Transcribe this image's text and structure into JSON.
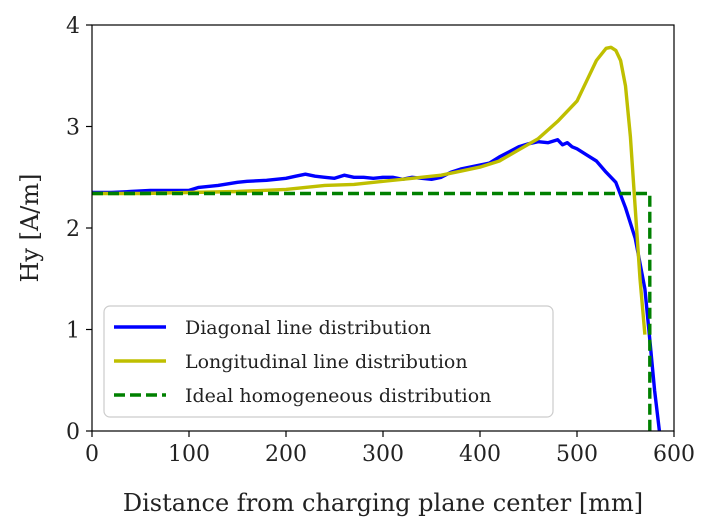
{
  "chart_data": {
    "type": "line",
    "title": "",
    "xlabel": "Distance from charging plane center [mm]",
    "ylabel": "Hy [A/m]",
    "xlim": [
      0,
      600
    ],
    "ylim": [
      0,
      4
    ],
    "xticks": [
      0,
      100,
      200,
      300,
      400,
      500,
      600
    ],
    "yticks": [
      0,
      1,
      2,
      3,
      4
    ],
    "grid": false,
    "legend_position": "lower-left",
    "series": [
      {
        "name": "Diagonal line distribution",
        "color": "#0000ff",
        "style": "solid",
        "x": [
          0,
          20,
          40,
          60,
          80,
          100,
          110,
          130,
          150,
          160,
          180,
          200,
          210,
          220,
          230,
          240,
          250,
          260,
          270,
          280,
          290,
          300,
          310,
          320,
          330,
          340,
          350,
          360,
          370,
          380,
          400,
          410,
          420,
          430,
          440,
          450,
          460,
          470,
          480,
          485,
          490,
          495,
          500,
          510,
          520,
          530,
          540,
          550,
          560,
          570,
          575,
          580,
          585
        ],
        "y": [
          2.35,
          2.35,
          2.36,
          2.37,
          2.37,
          2.37,
          2.4,
          2.42,
          2.45,
          2.46,
          2.47,
          2.49,
          2.51,
          2.53,
          2.51,
          2.5,
          2.49,
          2.52,
          2.5,
          2.5,
          2.49,
          2.5,
          2.5,
          2.48,
          2.5,
          2.49,
          2.48,
          2.5,
          2.55,
          2.58,
          2.62,
          2.64,
          2.7,
          2.75,
          2.8,
          2.83,
          2.85,
          2.84,
          2.87,
          2.82,
          2.84,
          2.8,
          2.78,
          2.72,
          2.66,
          2.55,
          2.45,
          2.2,
          1.9,
          1.4,
          0.9,
          0.4,
          0.0
        ]
      },
      {
        "name": "Longitudinal line distribution",
        "color": "#bfbf00",
        "style": "solid",
        "x": [
          0,
          50,
          100,
          150,
          200,
          220,
          240,
          270,
          300,
          330,
          360,
          380,
          400,
          420,
          440,
          460,
          480,
          500,
          510,
          520,
          530,
          535,
          540,
          545,
          550,
          555,
          560,
          565,
          570
        ],
        "y": [
          2.34,
          2.34,
          2.35,
          2.36,
          2.38,
          2.4,
          2.42,
          2.43,
          2.46,
          2.49,
          2.52,
          2.56,
          2.6,
          2.66,
          2.77,
          2.88,
          3.05,
          3.25,
          3.45,
          3.65,
          3.77,
          3.78,
          3.75,
          3.65,
          3.4,
          2.9,
          2.2,
          1.5,
          0.95
        ]
      },
      {
        "name": "Ideal homogeneous distribution",
        "color": "#008000",
        "style": "dashed",
        "x": [
          0,
          575,
          575
        ],
        "y": [
          2.34,
          2.34,
          0.0
        ]
      }
    ]
  }
}
